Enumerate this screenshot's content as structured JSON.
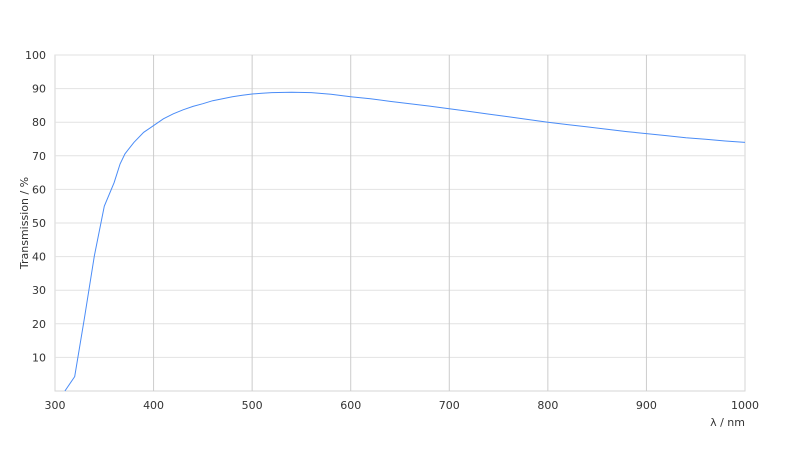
{
  "chart_data": {
    "type": "line",
    "title": "",
    "xlabel": "λ / nm",
    "ylabel": "Transmission / %",
    "xlim": [
      300,
      1000
    ],
    "ylim": [
      0,
      100
    ],
    "xticks": [
      300,
      400,
      500,
      600,
      700,
      800,
      900,
      1000
    ],
    "yticks": [
      10,
      20,
      30,
      40,
      50,
      60,
      70,
      80,
      90,
      100
    ],
    "grid": true,
    "line_color": "#4a8cf7",
    "series": [
      {
        "x": [
          310,
          320,
          330,
          340,
          350,
          360,
          366,
          371,
          380,
          390,
          400,
          410,
          420,
          430,
          440,
          450,
          460,
          470,
          480,
          490,
          500,
          510,
          520,
          540,
          560,
          580,
          600,
          620,
          640,
          660,
          680,
          700,
          720,
          740,
          760,
          780,
          800,
          820,
          840,
          860,
          880,
          900,
          920,
          940,
          960,
          980,
          1000
        ],
        "y": [
          0,
          4.3,
          22,
          40.3,
          55,
          62,
          67.6,
          70.6,
          74,
          77,
          79,
          81,
          82.5,
          83.7,
          84.7,
          85.5,
          86.4,
          87,
          87.6,
          88,
          88.4,
          88.6,
          88.8,
          88.9,
          88.8,
          88.3,
          87.6,
          87,
          86.2,
          85.5,
          84.8,
          84,
          83.2,
          82.4,
          81.6,
          80.8,
          80,
          79.3,
          78.6,
          77.9,
          77.2,
          76.6,
          76,
          75.4,
          74.9,
          74.4,
          74
        ]
      }
    ]
  }
}
